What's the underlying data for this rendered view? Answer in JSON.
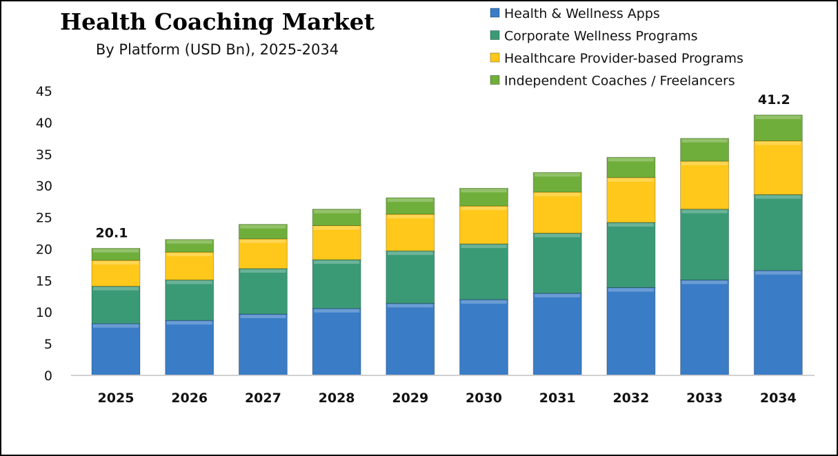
{
  "chart_data": {
    "type": "bar",
    "stacked": true,
    "title": "Health Coaching Market",
    "subtitle": "By Platform (USD Bn), 2025-2034",
    "xlabel": "",
    "ylabel": "",
    "ylim": [
      0,
      45
    ],
    "yticks": [
      0,
      5,
      10,
      15,
      20,
      25,
      30,
      35,
      40,
      45
    ],
    "grid": false,
    "legend_position": "top-right",
    "categories": [
      "2025",
      "2026",
      "2027",
      "2028",
      "2029",
      "2030",
      "2031",
      "2032",
      "2033",
      "2034"
    ],
    "series": [
      {
        "name": "Health & Wellness Apps",
        "color": "#3a7cc6",
        "values": [
          8.2,
          8.7,
          9.7,
          10.6,
          11.4,
          12.0,
          13.0,
          13.9,
          15.1,
          16.6
        ]
      },
      {
        "name": "Corporate Wellness Programs",
        "color": "#3a9a76",
        "values": [
          5.9,
          6.4,
          7.2,
          7.7,
          8.3,
          8.8,
          9.5,
          10.3,
          11.2,
          12.0
        ]
      },
      {
        "name": "Healthcare Provider-based Programs",
        "color": "#ffc81a",
        "values": [
          4.1,
          4.4,
          4.7,
          5.4,
          5.8,
          6.0,
          6.5,
          7.1,
          7.6,
          8.5
        ]
      },
      {
        "name": "Independent Coaches / Freelancers",
        "color": "#6fae3a",
        "values": [
          1.9,
          2.0,
          2.3,
          2.6,
          2.6,
          2.8,
          3.1,
          3.2,
          3.6,
          4.1
        ]
      }
    ],
    "data_labels": [
      {
        "category": "2025",
        "text": "20.1"
      },
      {
        "category": "2034",
        "text": "41.2"
      }
    ]
  }
}
